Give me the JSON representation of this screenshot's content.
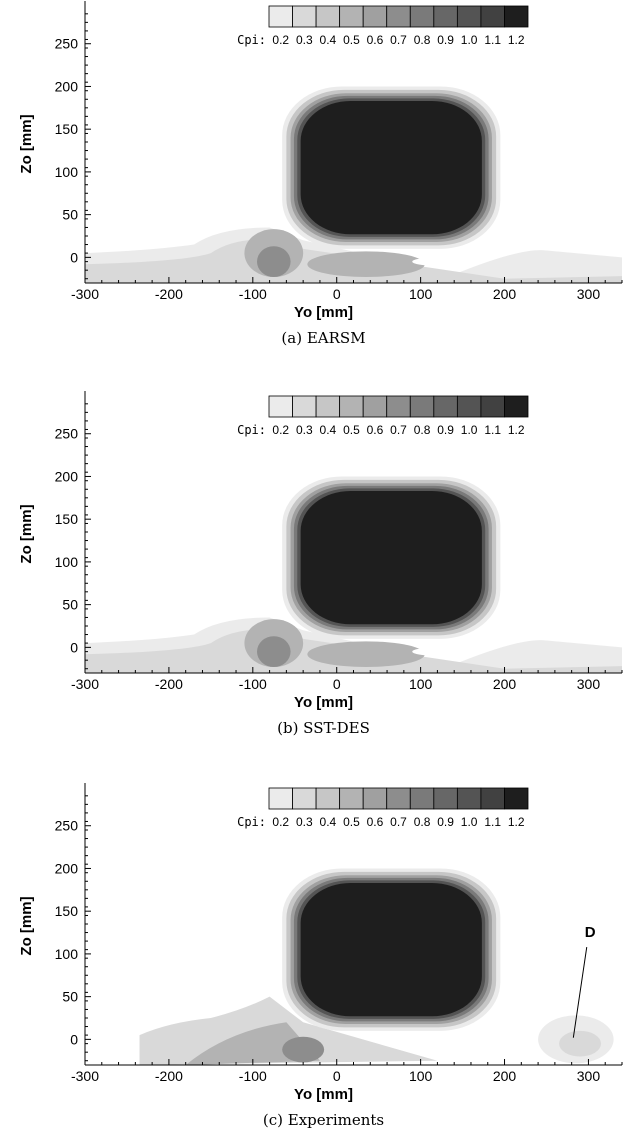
{
  "chart_data": [
    {
      "type": "heatmap",
      "caption": "(a) EARSM",
      "xlabel": "Yo [mm]",
      "ylabel": "Zo [mm]",
      "xlim": [
        -300,
        340
      ],
      "ylim": [
        -30,
        300
      ],
      "xticks": [
        -300,
        -200,
        -100,
        0,
        100,
        200,
        300
      ],
      "yticks": [
        0,
        50,
        100,
        150,
        200,
        250
      ],
      "colorbar": {
        "label": "Cpi:",
        "levels": [
          "0.2",
          "0.3",
          "0.4",
          "0.5",
          "0.6",
          "0.7",
          "0.8",
          "0.9",
          "1.0",
          "1.1",
          "1.2"
        ]
      },
      "annotation": ""
    },
    {
      "type": "heatmap",
      "caption": "(b) SST-DES",
      "xlabel": "Yo [mm]",
      "ylabel": "Zo [mm]",
      "xlim": [
        -300,
        340
      ],
      "ylim": [
        -30,
        300
      ],
      "xticks": [
        -300,
        -200,
        -100,
        0,
        100,
        200,
        300
      ],
      "yticks": [
        0,
        50,
        100,
        150,
        200,
        250
      ],
      "colorbar": {
        "label": "Cpi:",
        "levels": [
          "0.2",
          "0.3",
          "0.4",
          "0.5",
          "0.6",
          "0.7",
          "0.8",
          "0.9",
          "1.0",
          "1.1",
          "1.2"
        ]
      },
      "annotation": ""
    },
    {
      "type": "heatmap",
      "caption": "(c) Experiments",
      "xlabel": "Yo [mm]",
      "ylabel": "Zo [mm]",
      "xlim": [
        -300,
        340
      ],
      "ylim": [
        -30,
        300
      ],
      "xticks": [
        -300,
        -200,
        -100,
        0,
        100,
        200,
        300
      ],
      "yticks": [
        0,
        50,
        100,
        150,
        200,
        250
      ],
      "colorbar": {
        "label": "Cpi:",
        "levels": [
          "0.2",
          "0.3",
          "0.4",
          "0.5",
          "0.6",
          "0.7",
          "0.8",
          "0.9",
          "1.0",
          "1.1",
          "1.2"
        ]
      },
      "annotation": "D"
    }
  ],
  "colors": {
    "scale": [
      "#ebebeb",
      "#d9d9d9",
      "#c6c6c6",
      "#b3b3b3",
      "#a0a0a0",
      "#8d8d8d",
      "#7a7a7a",
      "#676767",
      "#545454",
      "#414141",
      "#1e1e1e"
    ]
  }
}
